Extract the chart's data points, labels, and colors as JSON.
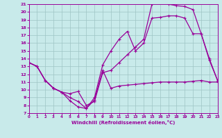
{
  "xlabel": "Windchill (Refroidissement éolien,°C)",
  "bg_color": "#c8eaea",
  "line_color": "#990099",
  "grid_color": "#9ec4c4",
  "xmin": 0,
  "xmax": 23,
  "ymin": 7,
  "ymax": 21,
  "line1_x": [
    0,
    1,
    2,
    3,
    4,
    5,
    6,
    7,
    8,
    9,
    10,
    11,
    12,
    13,
    14,
    15,
    16,
    17,
    18,
    19,
    20,
    21,
    22,
    23
  ],
  "line1_y": [
    13.5,
    13.0,
    11.2,
    10.2,
    9.7,
    8.6,
    7.8,
    7.6,
    8.7,
    12.5,
    10.2,
    10.5,
    10.6,
    10.7,
    10.8,
    10.9,
    11.0,
    11.0,
    11.0,
    11.0,
    11.1,
    11.2,
    11.0,
    11.0
  ],
  "line2_x": [
    0,
    1,
    2,
    3,
    4,
    5,
    6,
    7,
    8,
    9,
    10,
    11,
    12,
    13,
    14,
    15,
    16,
    17,
    18,
    19,
    20,
    21,
    22,
    23
  ],
  "line2_y": [
    13.5,
    13.0,
    11.2,
    10.2,
    9.7,
    9.0,
    8.5,
    7.6,
    9.0,
    13.2,
    15.0,
    16.5,
    17.5,
    15.0,
    16.0,
    19.2,
    19.3,
    19.5,
    19.5,
    19.2,
    17.2,
    17.2,
    13.8,
    11.2
  ],
  "line3_x": [
    0,
    1,
    2,
    3,
    4,
    5,
    6,
    7,
    8,
    9,
    10,
    11,
    12,
    13,
    14,
    15,
    16,
    17,
    18,
    19,
    20,
    21,
    22,
    23
  ],
  "line3_y": [
    13.5,
    13.0,
    11.2,
    10.2,
    9.7,
    9.5,
    9.8,
    8.0,
    8.5,
    12.2,
    12.5,
    13.5,
    14.5,
    15.5,
    16.5,
    21.0,
    21.5,
    21.0,
    20.8,
    20.7,
    20.3,
    17.2,
    14.0,
    11.2
  ]
}
